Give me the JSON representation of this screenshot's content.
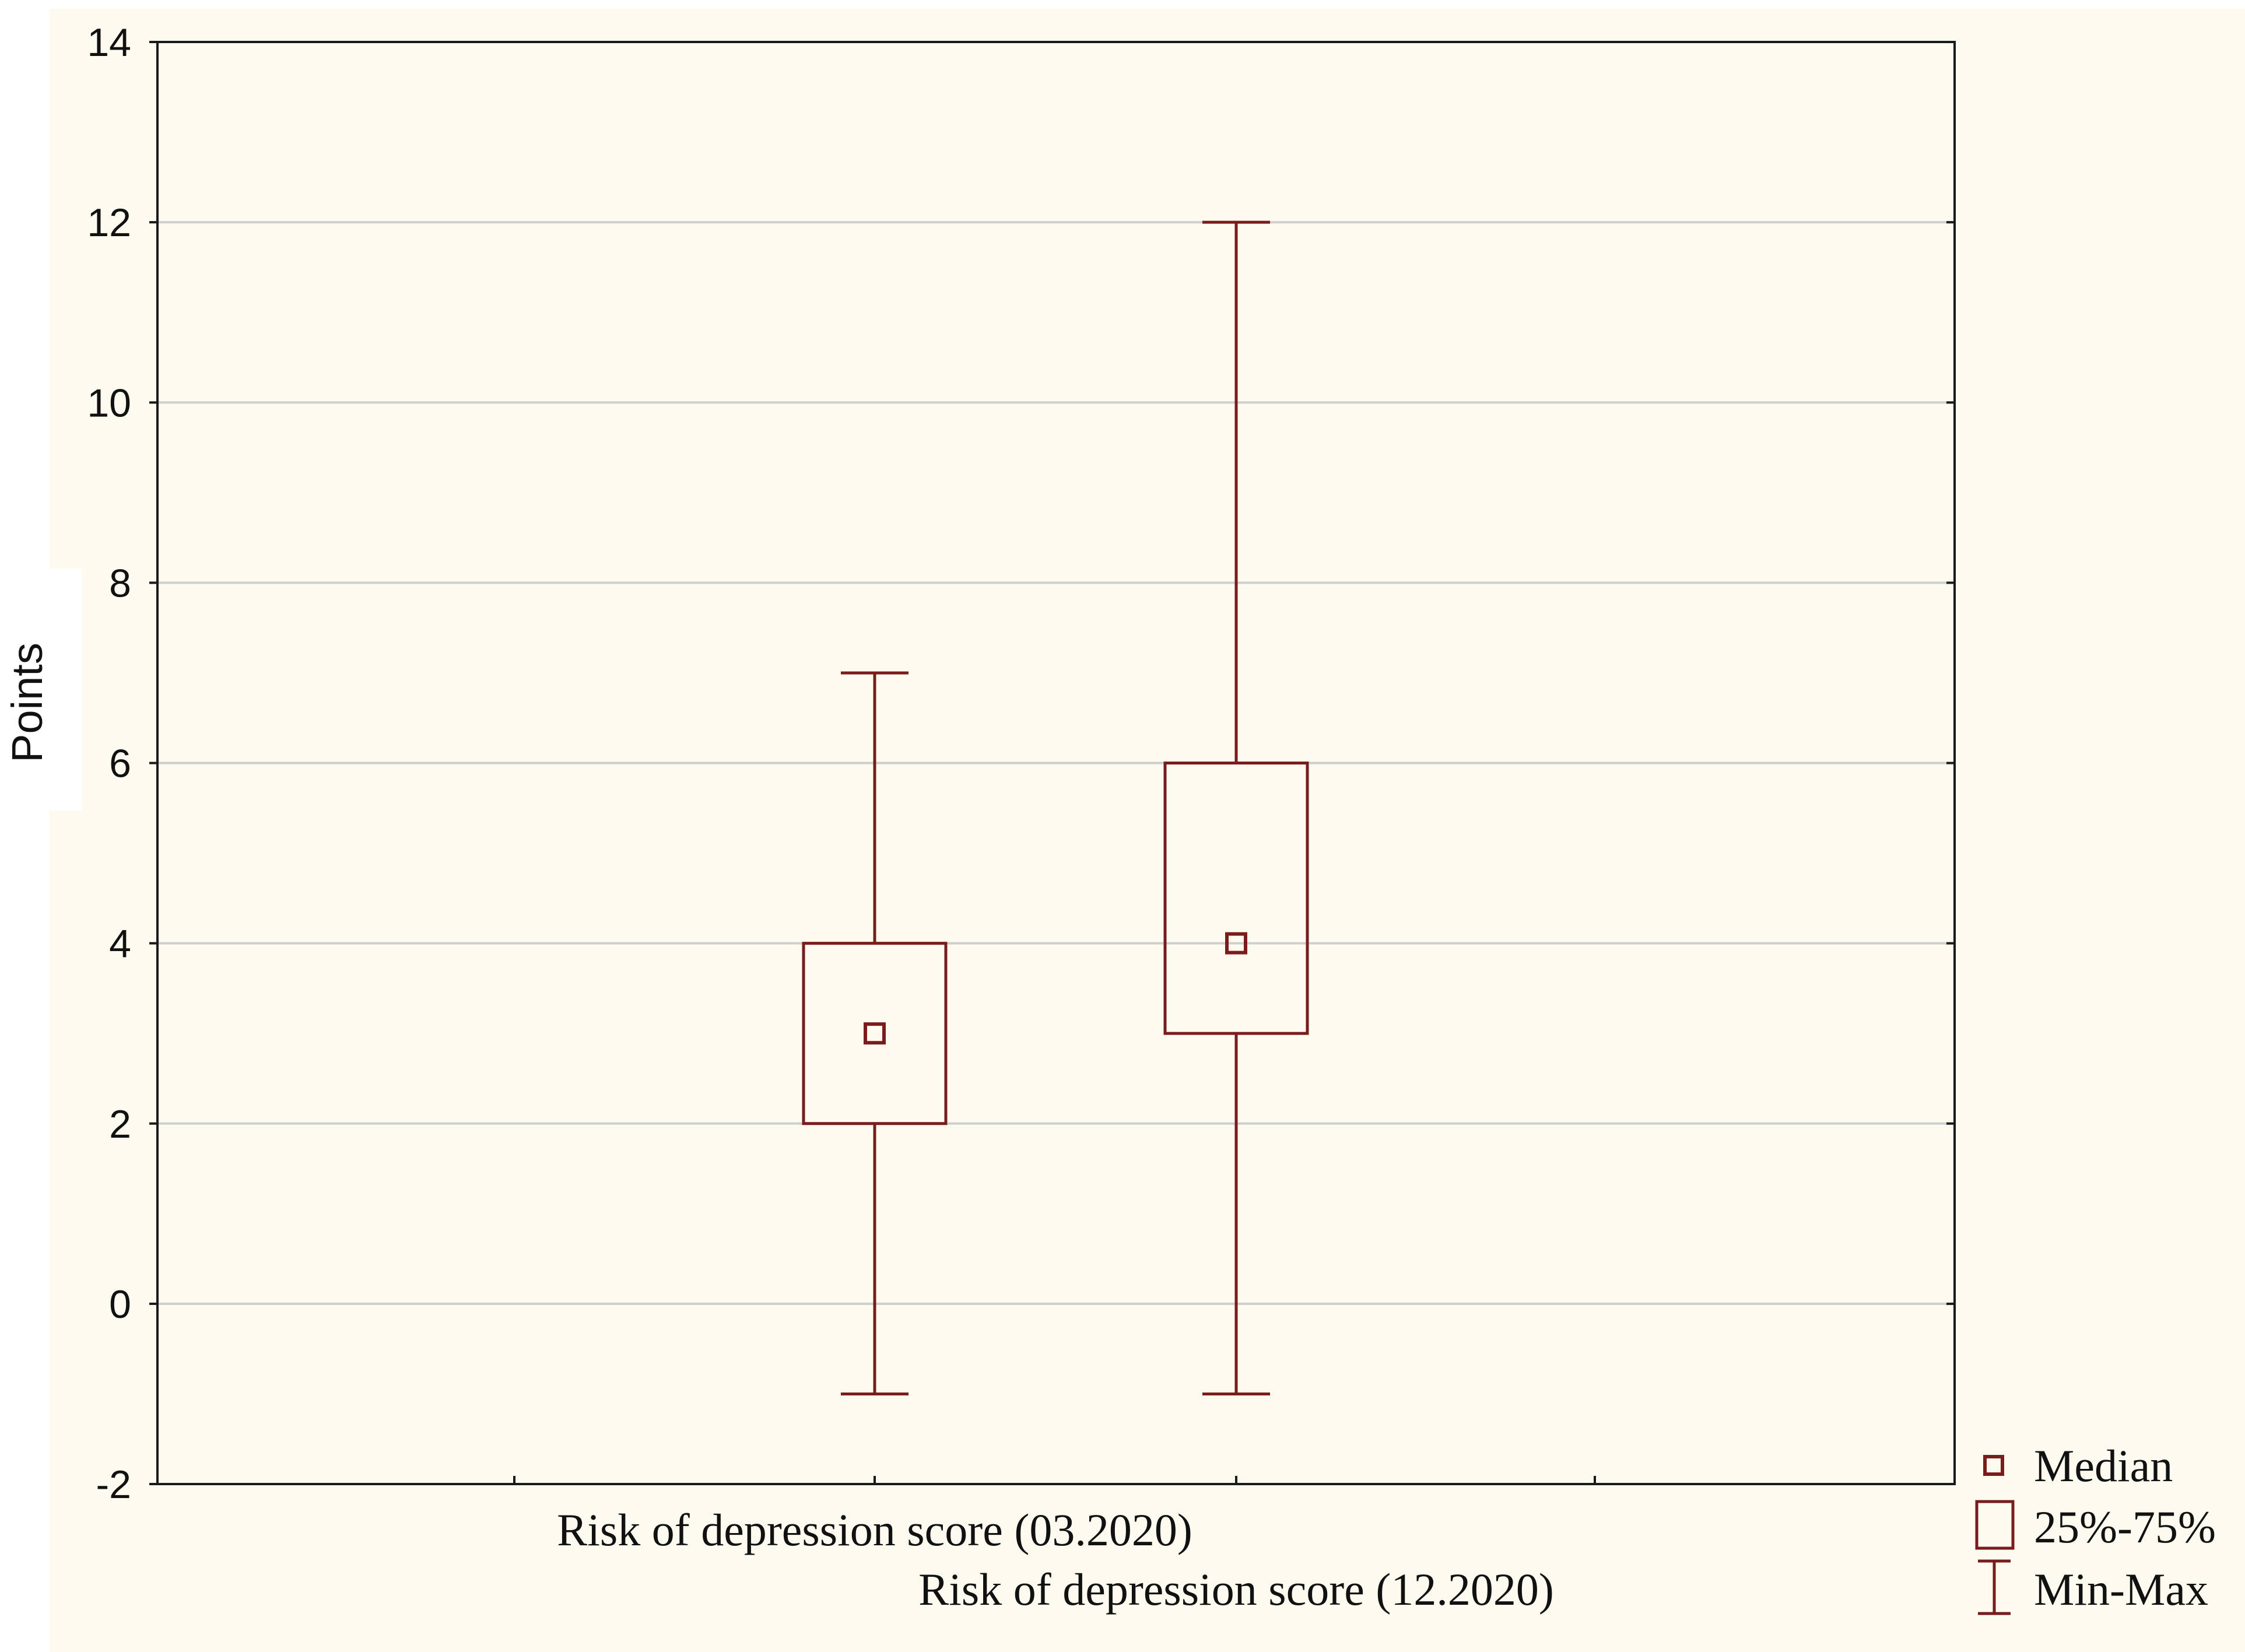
{
  "chart_data": {
    "type": "box",
    "ylabel": "Points",
    "xlabel": "",
    "ylim": [
      -2,
      14
    ],
    "yticks": [
      -2,
      0,
      2,
      4,
      6,
      8,
      10,
      12,
      14
    ],
    "grid": true,
    "legend_position": "bottom-right outside",
    "categories": [
      "Risk of depression score (03.2020)",
      "Risk of depression score (12.2020)"
    ],
    "boxes": [
      {
        "category": "Risk of depression score (03.2020)",
        "min": -1,
        "q1": 2,
        "median": 3,
        "q3": 4,
        "max": 7
      },
      {
        "category": "Risk of depression score (12.2020)",
        "min": -1,
        "q1": 3,
        "median": 4,
        "q3": 6,
        "max": 12
      }
    ],
    "legend": [
      {
        "symbol": "median-marker",
        "label": "Median"
      },
      {
        "symbol": "box",
        "label": "25%-75%"
      },
      {
        "symbol": "whisker",
        "label": "Min-Max"
      }
    ],
    "colors": {
      "box_stroke": "#7b1c1c",
      "grid": "#cfcfcf",
      "axis": "#1a1a1a",
      "background": "#fdfaf0"
    }
  }
}
